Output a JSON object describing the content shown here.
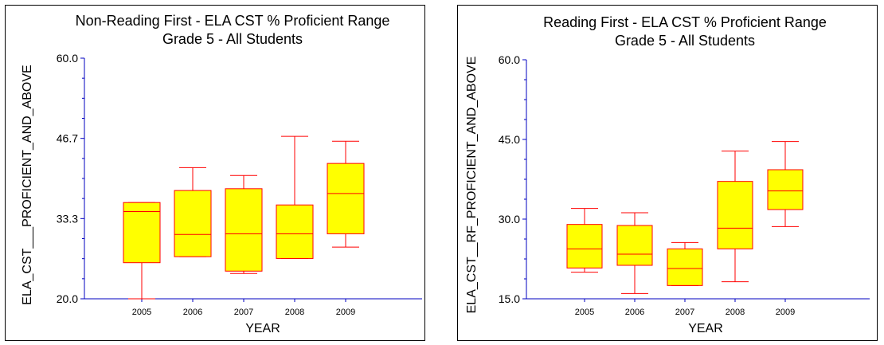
{
  "colors": {
    "axis": "#0000c0",
    "box_fill": "#ffff00",
    "box_stroke": "#ff0000"
  },
  "chart_data": [
    {
      "type": "box",
      "title": "Non-Reading First - ELA CST % Proficient Range",
      "subtitle": "Grade 5 - All Students",
      "xlabel": "YEAR",
      "ylabel": "ELA_CST___PROFICIENT_AND_ABOVE",
      "ylim": [
        20.0,
        60.0
      ],
      "yticks": [
        "20.0",
        "33.3",
        "46.7",
        "60.0"
      ],
      "categories": [
        "2005",
        "2006",
        "2007",
        "2008",
        "2009"
      ],
      "boxes": [
        {
          "x": "2005",
          "min": 20.0,
          "q1": 26.0,
          "median": 34.5,
          "q3": 36.0,
          "max": 36.0
        },
        {
          "x": "2006",
          "min": 27.0,
          "q1": 27.0,
          "median": 30.7,
          "q3": 38.0,
          "max": 41.8
        },
        {
          "x": "2007",
          "min": 24.2,
          "q1": 24.6,
          "median": 30.8,
          "q3": 38.3,
          "max": 40.5
        },
        {
          "x": "2008",
          "min": 26.7,
          "q1": 26.7,
          "median": 30.8,
          "q3": 35.6,
          "max": 47.0
        },
        {
          "x": "2009",
          "min": 28.6,
          "q1": 30.8,
          "median": 37.5,
          "q3": 42.5,
          "max": 46.2
        }
      ]
    },
    {
      "type": "box",
      "title": "Reading First - ELA CST % Proficient Range",
      "subtitle": "Grade 5 - All Students",
      "xlabel": "YEAR",
      "ylabel": "ELA_CST__RF_PROFICIENT_AND_ABOVE",
      "ylim": [
        15.0,
        60.0
      ],
      "yticks": [
        "15.0",
        "30.0",
        "45.0",
        "60.0"
      ],
      "categories": [
        "2005",
        "2006",
        "2007",
        "2008",
        "2009"
      ],
      "boxes": [
        {
          "x": "2005",
          "min": 20.0,
          "q1": 20.8,
          "median": 24.4,
          "q3": 29.0,
          "max": 32.0
        },
        {
          "x": "2006",
          "min": 16.0,
          "q1": 21.3,
          "median": 23.4,
          "q3": 28.8,
          "max": 31.2
        },
        {
          "x": "2007",
          "min": 17.5,
          "q1": 17.5,
          "median": 20.7,
          "q3": 24.4,
          "max": 25.6
        },
        {
          "x": "2008",
          "min": 18.2,
          "q1": 24.4,
          "median": 28.3,
          "q3": 37.1,
          "max": 42.8
        },
        {
          "x": "2009",
          "min": 28.6,
          "q1": 31.8,
          "median": 35.3,
          "q3": 39.3,
          "max": 44.6
        }
      ]
    }
  ]
}
